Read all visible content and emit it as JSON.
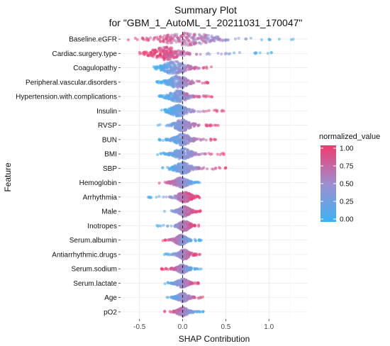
{
  "chart_data": {
    "type": "scatter",
    "subtype": "beeswarm",
    "title_line1": "Summary Plot",
    "title_line2": "for \"GBM_1_AutoML_1_20211031_170047\"",
    "xlabel": "SHAP Contribution",
    "ylabel": "Feature",
    "xlim": [
      -0.72,
      1.45
    ],
    "x_ticks": [
      -0.5,
      0.0,
      0.5,
      1.0
    ],
    "x_tick_labels": [
      "-0.5",
      "0.0",
      "0.5",
      "1.0"
    ],
    "grid": true,
    "zero_line": "dashed",
    "legend": {
      "title": "normalized_value",
      "position": "right",
      "ticks": [
        1.0,
        0.75,
        0.5,
        0.25,
        0.0
      ],
      "tick_labels": [
        "1.00",
        "0.75",
        "0.50",
        "0.25",
        "0.00"
      ],
      "color_low": "#3cb3f3",
      "color_mid": "#9e8ecf",
      "color_high": "#f03a6e"
    },
    "features": [
      {
        "name": "Baseline.eGFR",
        "min": -0.68,
        "max": 1.32,
        "center": 0.05,
        "width": 0.55,
        "high_side": "neg",
        "half_height": 0.45
      },
      {
        "name": "Cardiac.surgery.type",
        "min": -0.5,
        "max": 1.05,
        "center": -0.2,
        "width": 0.3,
        "high_side": "neg",
        "half_height": 0.45
      },
      {
        "name": "Coagulopathy",
        "min": -0.35,
        "max": 0.38,
        "center": -0.1,
        "width": 0.25,
        "high_side": "pos",
        "half_height": 0.45
      },
      {
        "name": "Peripheral.vascular.disorders",
        "min": -0.3,
        "max": 0.35,
        "center": -0.05,
        "width": 0.2,
        "high_side": "pos",
        "half_height": 0.45
      },
      {
        "name": "Hypertension.with.complications",
        "min": -0.28,
        "max": 0.35,
        "center": -0.05,
        "width": 0.2,
        "high_side": "pos",
        "half_height": 0.4
      },
      {
        "name": "Insulin",
        "min": -0.25,
        "max": 0.5,
        "center": -0.05,
        "width": 0.18,
        "high_side": "pos",
        "half_height": 0.4
      },
      {
        "name": "RVSP",
        "min": -0.3,
        "max": 0.42,
        "center": 0.0,
        "width": 0.18,
        "high_side": "pos",
        "half_height": 0.4
      },
      {
        "name": "BUN",
        "min": -0.28,
        "max": 0.45,
        "center": 0.0,
        "width": 0.17,
        "high_side": "pos",
        "half_height": 0.4
      },
      {
        "name": "BMI",
        "min": -0.32,
        "max": 0.55,
        "center": 0.0,
        "width": 0.18,
        "high_side": "pos",
        "half_height": 0.4
      },
      {
        "name": "SBP",
        "min": -0.25,
        "max": 0.52,
        "center": 0.0,
        "width": 0.17,
        "high_side": "pos",
        "half_height": 0.4
      },
      {
        "name": "Hemoglobin",
        "min": -0.33,
        "max": 0.25,
        "center": -0.02,
        "width": 0.15,
        "high_side": "neg",
        "half_height": 0.35
      },
      {
        "name": "Arrhythmia",
        "min": -0.4,
        "max": 0.22,
        "center": 0.02,
        "width": 0.15,
        "high_side": "pos",
        "half_height": 0.35
      },
      {
        "name": "Male",
        "min": -0.25,
        "max": 0.22,
        "center": 0.02,
        "width": 0.12,
        "high_side": "pos",
        "half_height": 0.35
      },
      {
        "name": "Inotropes",
        "min": -0.3,
        "max": 0.22,
        "center": 0.02,
        "width": 0.12,
        "high_side": "pos",
        "half_height": 0.35
      },
      {
        "name": "Serum.albumin",
        "min": -0.28,
        "max": 0.22,
        "center": -0.02,
        "width": 0.12,
        "high_side": "neg",
        "half_height": 0.35
      },
      {
        "name": "Antiarrhythmic.drugs",
        "min": -0.22,
        "max": 0.22,
        "center": 0.02,
        "width": 0.12,
        "high_side": "pos",
        "half_height": 0.35
      },
      {
        "name": "Serum.sodium",
        "min": -0.25,
        "max": 0.22,
        "center": 0.0,
        "width": 0.12,
        "high_side": "neg",
        "half_height": 0.3
      },
      {
        "name": "Serum.lactate",
        "min": -0.22,
        "max": 0.22,
        "center": 0.0,
        "width": 0.12,
        "high_side": "pos",
        "half_height": 0.3
      },
      {
        "name": "Age",
        "min": -0.22,
        "max": 0.3,
        "center": 0.0,
        "width": 0.12,
        "high_side": "pos",
        "half_height": 0.3
      },
      {
        "name": "pO2",
        "min": -0.22,
        "max": 0.25,
        "center": 0.0,
        "width": 0.12,
        "high_side": "neg",
        "half_height": 0.3
      }
    ]
  }
}
